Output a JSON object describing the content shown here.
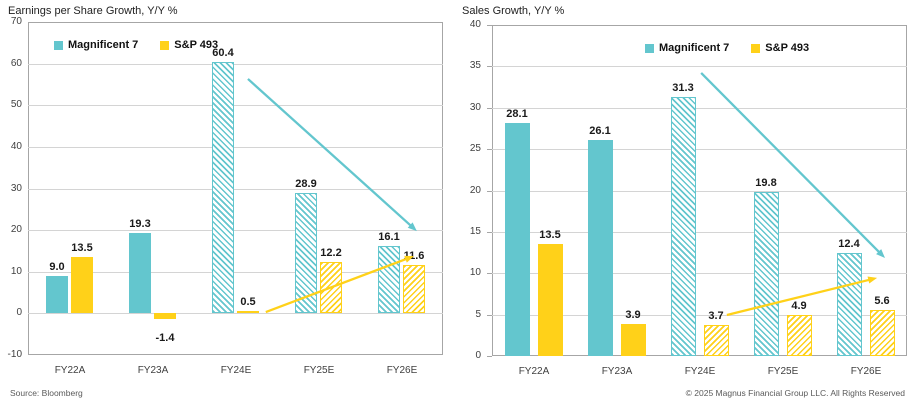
{
  "page": {
    "footer_left": "Source: Bloomberg",
    "footer_right": "© 2025 Magnus Financial Group LLC. All Rights Reserved"
  },
  "colors": {
    "magnificent7": "#63C6CE",
    "sp493": "#FFD119",
    "gridline": "#D4D4D4",
    "plot_border": "#A6A6A6",
    "axis_text": "#3F3F3F",
    "value_text": "#1A1A1A",
    "footer_text": "#5A5A5A"
  },
  "chart_data": [
    {
      "type": "bar",
      "title": "Earnings per Share Growth, Y/Y %",
      "categories": [
        "FY22A",
        "FY23A",
        "FY24E",
        "FY25E",
        "FY26E"
      ],
      "series": [
        {
          "name": "Magnificent 7",
          "color": "#63C6CE",
          "values": [
            9.0,
            19.3,
            60.4,
            28.9,
            16.1
          ]
        },
        {
          "name": "S&P 493",
          "color": "#FFD119",
          "values": [
            13.5,
            -1.4,
            0.5,
            12.2,
            11.6
          ]
        }
      ],
      "estimated_categories": [
        "FY24E",
        "FY25E",
        "FY26E"
      ],
      "ylim": [
        -10,
        70
      ],
      "ytick_step": 10,
      "grid": true,
      "legend_position": "top-left-inside",
      "annotations": [
        {
          "name": "magnificent7-downtrend-arrow",
          "color": "#63C6CE",
          "from_frac": [
            0.53,
            0.171
          ],
          "to_frac": [
            0.937,
            0.628
          ]
        },
        {
          "name": "sp493-uptrend-arrow",
          "color": "#FFD119",
          "from_frac": [
            0.573,
            0.871
          ],
          "to_frac": [
            0.93,
            0.703
          ]
        }
      ]
    },
    {
      "type": "bar",
      "title": "Sales Growth, Y/Y %",
      "categories": [
        "FY22A",
        "FY23A",
        "FY24E",
        "FY25E",
        "FY26E"
      ],
      "series": [
        {
          "name": "Magnificent 7",
          "color": "#63C6CE",
          "values": [
            28.1,
            26.1,
            31.3,
            19.8,
            12.4
          ]
        },
        {
          "name": "S&P 493",
          "color": "#FFD119",
          "values": [
            13.5,
            3.9,
            3.7,
            4.9,
            5.6
          ]
        }
      ],
      "estimated_categories": [
        "FY24E",
        "FY25E",
        "FY26E"
      ],
      "ylim": [
        0,
        40
      ],
      "ytick_step": 5,
      "grid": true,
      "legend_position": "top-center-inside",
      "annotations": [
        {
          "name": "magnificent7-downtrend-arrow",
          "color": "#63C6CE",
          "from_frac": [
            0.504,
            0.145
          ],
          "to_frac": [
            0.947,
            0.704
          ]
        },
        {
          "name": "sp493-uptrend-arrow",
          "color": "#FFD119",
          "from_frac": [
            0.566,
            0.876
          ],
          "to_frac": [
            0.928,
            0.764
          ]
        }
      ]
    }
  ]
}
